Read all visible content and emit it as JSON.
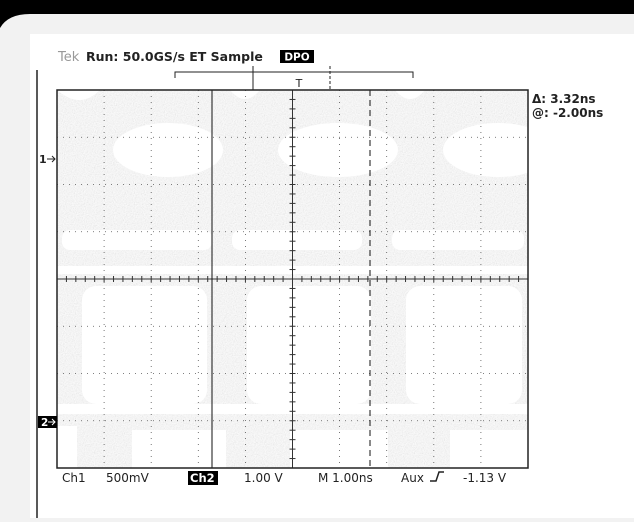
{
  "header": {
    "brand": "Tek",
    "status": "Run: 50.0GS/s ET Sample",
    "mode": "DPO"
  },
  "trigger": {
    "marker": "T"
  },
  "cursor_readout": {
    "delta": "Δ: 3.32ns",
    "position": "@: -2.00ns"
  },
  "channel_markers": [
    "1",
    "2"
  ],
  "status_bar": {
    "ch1": "Ch1",
    "ch1_scale": "500mV",
    "ch2": "Ch2",
    "ch2_scale": "1.00 V",
    "timebase": "M 1.00ns",
    "trigger_source": "Aux",
    "trigger_level": "-1.13 V"
  }
}
